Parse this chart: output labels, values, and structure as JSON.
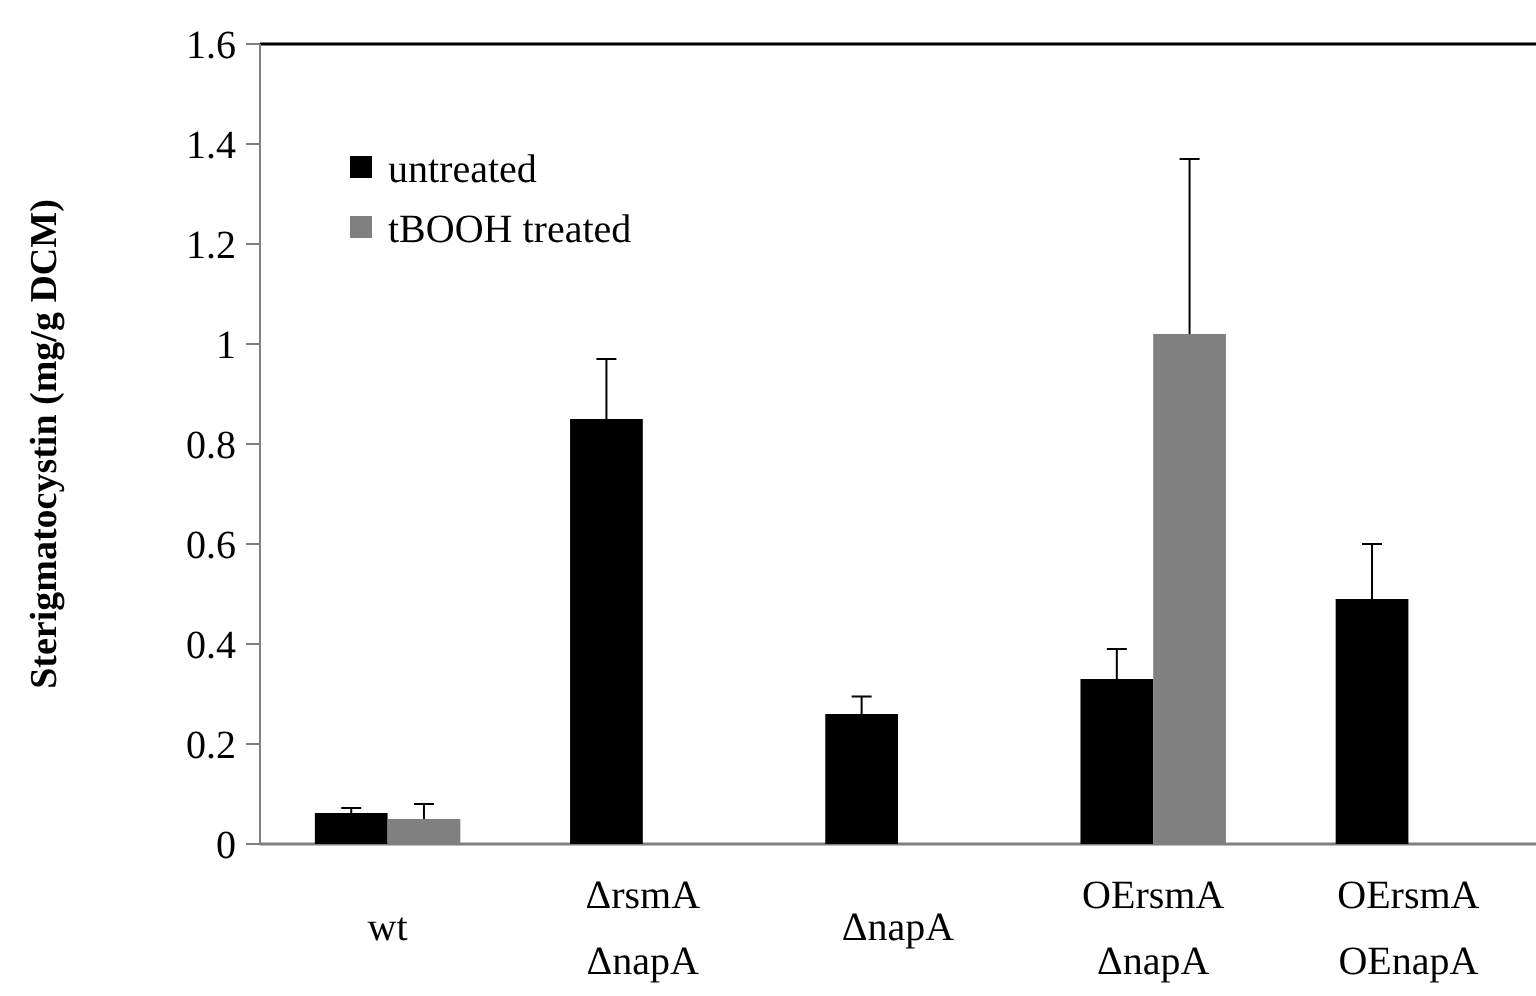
{
  "chart_data": {
    "type": "bar",
    "ylabel": "Sterigmatocystin (mg/g DCM)",
    "categories": [
      "wt",
      "ΔrsmA\nΔnapA",
      "ΔnapA",
      "OErsmA\nΔnapA",
      "OErsmA\nOEnapA"
    ],
    "series": [
      {
        "name": "untreated",
        "color": "#000000",
        "values": [
          0.062,
          0.85,
          0.26,
          0.33,
          0.49
        ],
        "errors": [
          0.01,
          0.12,
          0.035,
          0.06,
          0.11
        ]
      },
      {
        "name": "tBOOH treated",
        "color": "#808080",
        "values": [
          0.05,
          null,
          null,
          1.02,
          null
        ],
        "errors": [
          0.03,
          null,
          null,
          0.35,
          null
        ]
      }
    ],
    "ylim": [
      0,
      1.6
    ],
    "yticks": [
      0,
      {
        "value": 0.2,
        "label": "0.2"
      },
      {
        "value": 0.4,
        "label": "0.4"
      },
      {
        "value": 0.6,
        "label": "0.6"
      },
      {
        "value": 0.8,
        "label": "0.8"
      },
      1,
      {
        "value": 1.2,
        "label": "1.2"
      },
      {
        "value": 1.4,
        "label": "1.4"
      },
      {
        "value": 1.6,
        "label": "1.6"
      }
    ],
    "grid": false,
    "legend": "top left"
  }
}
